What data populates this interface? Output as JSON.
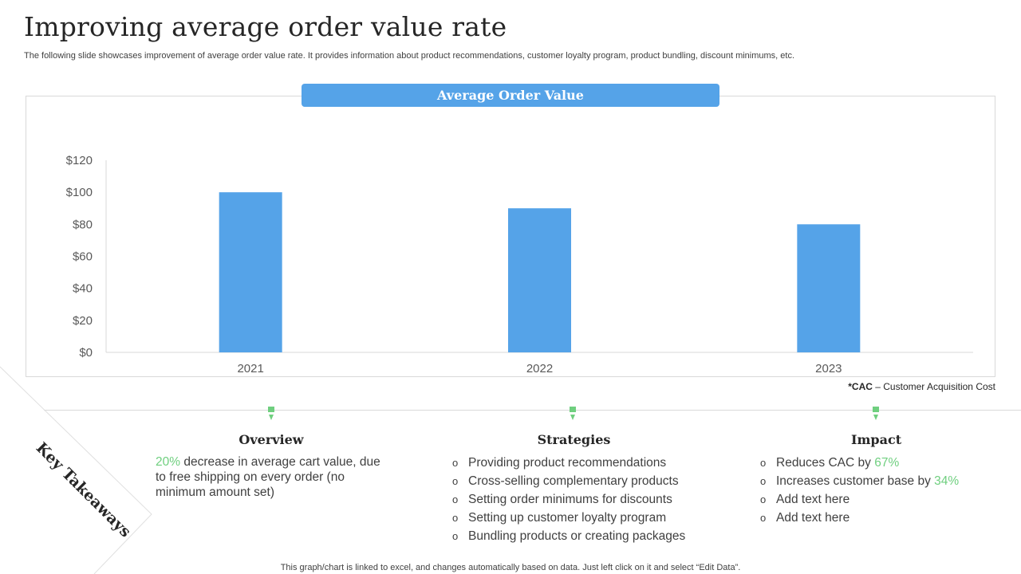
{
  "page": {
    "title": "Improving average order value rate",
    "subtitle": "The following slide showcases improvement of average order value rate. It provides information about product recommendations, customer loyalty program, product bundling, discount minimums, etc.",
    "bottom_note": "This graph/chart is linked to excel,  and changes automatically based on data. Just left click on it and select “Edit Data”."
  },
  "chart_data": {
    "type": "bar",
    "title": "Average Order Value",
    "categories": [
      "2021",
      "2022",
      "2023"
    ],
    "values": [
      100,
      90,
      80
    ],
    "ylim": [
      0,
      120
    ],
    "yticks": [
      0,
      20,
      40,
      60,
      80,
      100,
      120
    ],
    "ytick_labels": [
      "$0",
      "$20",
      "$40",
      "$60",
      "$80",
      "$100",
      "$120"
    ],
    "xlabel": "",
    "ylabel": "",
    "bar_color": "#55a3e8",
    "grid": false
  },
  "footnote": {
    "abbr": "*CAC",
    "text": " – Customer Acquisition Cost"
  },
  "takeaways": {
    "label": "Key Takeaways",
    "marker_color": "#6fcf7f",
    "overview": {
      "heading": "Overview",
      "highlight": "20%",
      "text": " decrease in average cart value, due to free shipping on every order (no minimum amount set)"
    },
    "strategies": {
      "heading": "Strategies",
      "bullet": "o",
      "items": [
        "Providing product recommendations",
        "Cross-selling complementary  products",
        "Setting order minimums for discounts",
        "Setting up customer loyalty  program",
        "Bundling products or creating packages"
      ]
    },
    "impact": {
      "heading": "Impact",
      "bullet": "o",
      "items": [
        {
          "text": "Reduces CAC by ",
          "highlight": "67%"
        },
        {
          "text": "Increases  customer base by ",
          "highlight": "34%"
        },
        {
          "text": "Add text here",
          "highlight": ""
        },
        {
          "text": "Add text here",
          "highlight": ""
        }
      ]
    }
  }
}
